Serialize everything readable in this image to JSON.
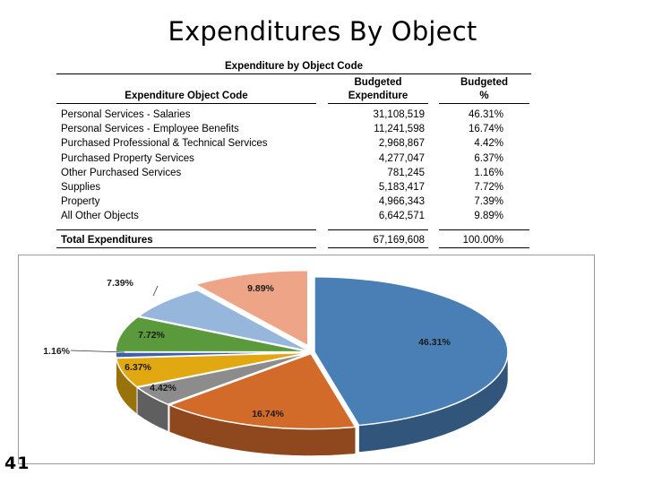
{
  "slide": {
    "title": "Expenditures By Object",
    "number": "41"
  },
  "table": {
    "title": "Expenditure by Object Code",
    "headers": {
      "col1": "Expenditure Object Code",
      "col2_line1": "Budgeted",
      "col2_line2": "Expenditure",
      "col3_line1": "Budgeted",
      "col3_line2": "%"
    },
    "rows": [
      {
        "code": "Personal Services - Salaries",
        "amount": "31,108,519",
        "pct": "46.31%"
      },
      {
        "code": "Personal Services - Employee Benefits",
        "amount": "11,241,598",
        "pct": "16.74%"
      },
      {
        "code": "Purchased Professional & Technical Services",
        "amount": "2,968,867",
        "pct": "4.42%"
      },
      {
        "code": "Purchased Property Services",
        "amount": "4,277,047",
        "pct": "6.37%"
      },
      {
        "code": "Other Purchased Services",
        "amount": "781,245",
        "pct": "1.16%"
      },
      {
        "code": "Supplies",
        "amount": "5,183,417",
        "pct": "7.72%"
      },
      {
        "code": "Property",
        "amount": "4,966,343",
        "pct": "7.39%"
      },
      {
        "code": "All Other Objects",
        "amount": "6,642,571",
        "pct": "9.89%"
      }
    ],
    "total": {
      "label": "Total Expenditures",
      "amount": "67,169,608",
      "pct": "100.00%"
    }
  },
  "chart_data": {
    "type": "pie",
    "slices": [
      {
        "label": "46.31%",
        "value": 46.31,
        "color": "#4a7fb5"
      },
      {
        "label": "16.74%",
        "value": 16.74,
        "color": "#d26a2a"
      },
      {
        "label": "4.42%",
        "value": 4.42,
        "color": "#8c8c8c"
      },
      {
        "label": "6.37%",
        "value": 6.37,
        "color": "#e2a812"
      },
      {
        "label": "1.16%",
        "value": 1.16,
        "color": "#3d62a8"
      },
      {
        "label": "7.72%",
        "value": 7.72,
        "color": "#5a9a3c"
      },
      {
        "label": "7.39%",
        "value": 7.39,
        "color": "#96b6dc"
      },
      {
        "label": "9.89%",
        "value": 9.89,
        "color": "#eea486",
        "exploded": true
      }
    ]
  }
}
